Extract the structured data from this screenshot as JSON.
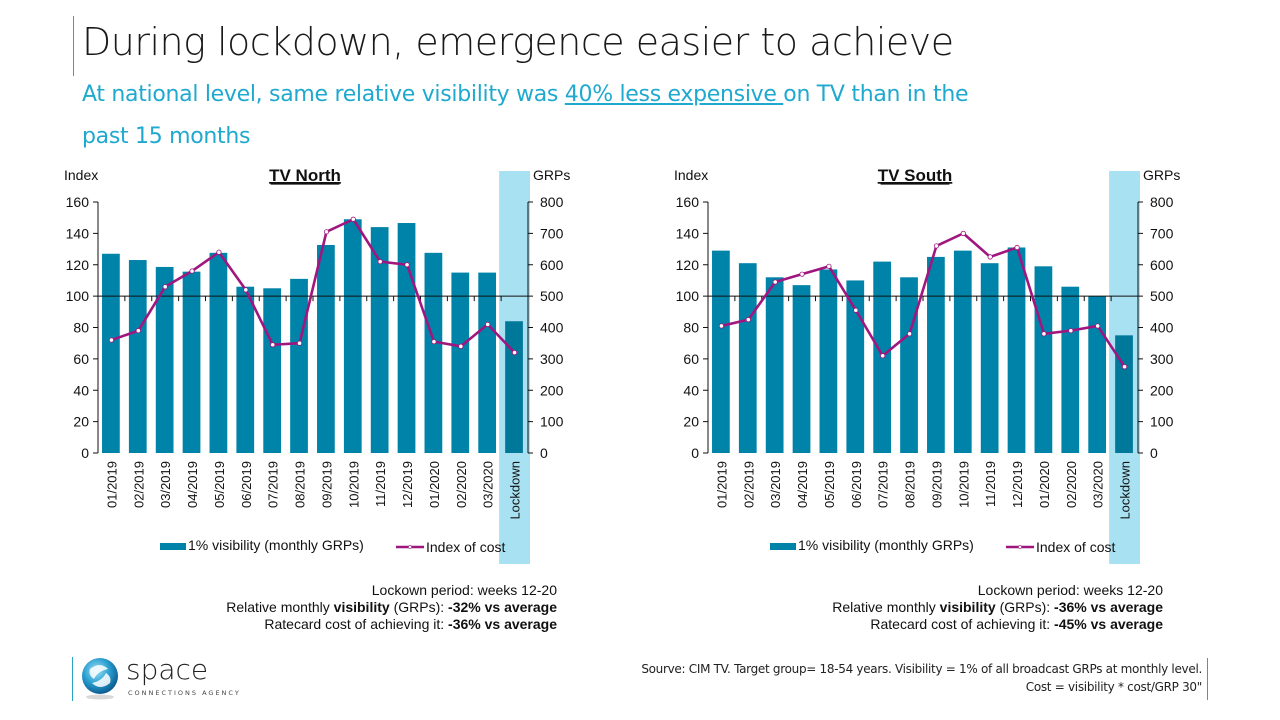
{
  "header": {
    "title": "During lockdown, emergence easier to achieve",
    "subtitle_pre": "At national level, same relative visibility was ",
    "subtitle_highlight": "40% less expensive ",
    "subtitle_post": "on TV than in the past 15 months"
  },
  "colors": {
    "bar": "#0083a8",
    "bar_lockdown": "#00789a",
    "line": "#a0167f",
    "lockdown_band": "#a8e1f2",
    "accent": "#1fa9cf"
  },
  "chart_data": [
    {
      "type": "bar",
      "title": "TV North",
      "ylabel": "Index",
      "y2label": "GRPs",
      "ylim": [
        0,
        160
      ],
      "y2lim": [
        0,
        800
      ],
      "yticks": [
        0,
        20,
        40,
        60,
        80,
        100,
        120,
        140,
        160
      ],
      "y2ticks": [
        0,
        100,
        200,
        300,
        400,
        500,
        600,
        700,
        800
      ],
      "reference_line": 100,
      "categories": [
        "01/2019",
        "02/2019",
        "03/2019",
        "04/2019",
        "05/2019",
        "06/2019",
        "07/2019",
        "08/2019",
        "09/2019",
        "10/2019",
        "11/2019",
        "12/2019",
        "01/2020",
        "02/2020",
        "03/2020",
        "Lockdown"
      ],
      "highlight_category": "Lockdown",
      "series": [
        {
          "name": "1% visibility (monthly GRPs)",
          "type": "bar",
          "axis": "right",
          "values": [
            635,
            615,
            593,
            578,
            638,
            530,
            525,
            555,
            663,
            745,
            720,
            733,
            638,
            575,
            575,
            420
          ]
        },
        {
          "name": "Index of cost",
          "type": "line",
          "axis": "left",
          "values": [
            72,
            78,
            106,
            116,
            128,
            104,
            69,
            70,
            141,
            149,
            122,
            120,
            71,
            68,
            82,
            64
          ]
        }
      ],
      "legend": "bottom",
      "notes": {
        "line1": "Lockown period: weeks 12-20",
        "line2_pre": "Relative monthly ",
        "line2_bold": "visibility",
        "line2_mid": " (GRPs): ",
        "line2_value": "-32% vs average",
        "line3_pre": "Ratecard cost of achieving it: ",
        "line3_value": "-36% vs average"
      }
    },
    {
      "type": "bar",
      "title": "TV South",
      "ylabel": "Index",
      "y2label": "GRPs",
      "ylim": [
        0,
        160
      ],
      "y2lim": [
        0,
        800
      ],
      "yticks": [
        0,
        20,
        40,
        60,
        80,
        100,
        120,
        140,
        160
      ],
      "y2ticks": [
        0,
        100,
        200,
        300,
        400,
        500,
        600,
        700,
        800
      ],
      "reference_line": 100,
      "categories": [
        "01/2019",
        "02/2019",
        "03/2019",
        "04/2019",
        "05/2019",
        "06/2019",
        "07/2019",
        "08/2019",
        "09/2019",
        "10/2019",
        "11/2019",
        "12/2019",
        "01/2020",
        "02/2020",
        "03/2020",
        "Lockdown"
      ],
      "highlight_category": "Lockdown",
      "series": [
        {
          "name": "1% visibility (monthly GRPs)",
          "type": "bar",
          "axis": "right",
          "values": [
            645,
            605,
            560,
            535,
            585,
            550,
            610,
            560,
            625,
            645,
            605,
            655,
            595,
            530,
            500,
            375
          ]
        },
        {
          "name": "Index of cost",
          "type": "line",
          "axis": "left",
          "values": [
            81,
            85,
            109,
            114,
            119,
            91,
            62,
            76,
            132,
            140,
            125,
            131,
            76,
            78,
            81,
            55
          ]
        }
      ],
      "legend": "bottom",
      "notes": {
        "line1": "Lockown period: weeks 12-20",
        "line2_pre": "Relative monthly ",
        "line2_bold": "visibility",
        "line2_mid": " (GRPs): ",
        "line2_value": "-36% vs average",
        "line3_pre": "Ratecard cost of achieving it: ",
        "line3_value": "-45% vs average"
      }
    }
  ],
  "footer": {
    "logo_name": "space",
    "logo_tagline": "CONNECTIONS AGENCY",
    "source_line1": "Sourve: CIM TV. Target group= 18-54 years. Visibility = 1% of all broadcast GRPs at monthly level.",
    "source_line2": "Cost = visibility * cost/GRP 30\""
  }
}
